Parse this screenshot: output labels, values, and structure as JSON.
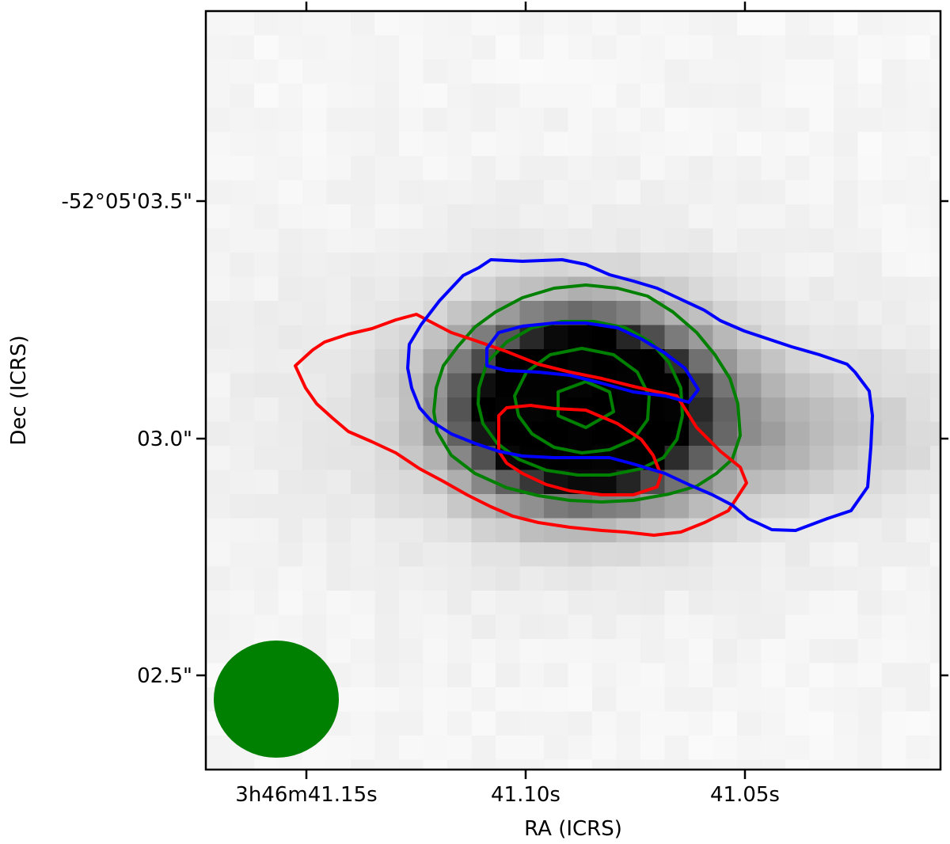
{
  "chart_data": {
    "type": "contour",
    "xlabel": "RA (ICRS)",
    "ylabel": "Dec (ICRS)",
    "x_ticks": [
      {
        "value": "3h46m41.15s",
        "label": "3h46m41.15s"
      },
      {
        "value": "3h46m41.10s",
        "label": "41.10s"
      },
      {
        "value": "3h46m41.05s",
        "label": "41.05s"
      }
    ],
    "y_ticks": [
      {
        "value": "-52°05'03.5\"",
        "label": "-52°05'03.5\""
      },
      {
        "value": "-52°05'03.0\"",
        "label": "03.0\""
      },
      {
        "value": "-52°05'02.5\"",
        "label": "02.5\""
      }
    ],
    "background": "grayscale emission map",
    "peak": {
      "ra": "3h46m41.088s",
      "dec": "-52°05'03.07\""
    },
    "series": [
      {
        "color": "#008000",
        "levels": 4,
        "description_role": "green contours"
      },
      {
        "color": "#ff0000",
        "levels": 2,
        "description_role": "red contours"
      },
      {
        "color": "#0000ff",
        "levels": 2,
        "description_role": "blue contours"
      }
    ],
    "beam": {
      "color": "#008000",
      "shape": "ellipse"
    },
    "grid": false
  }
}
